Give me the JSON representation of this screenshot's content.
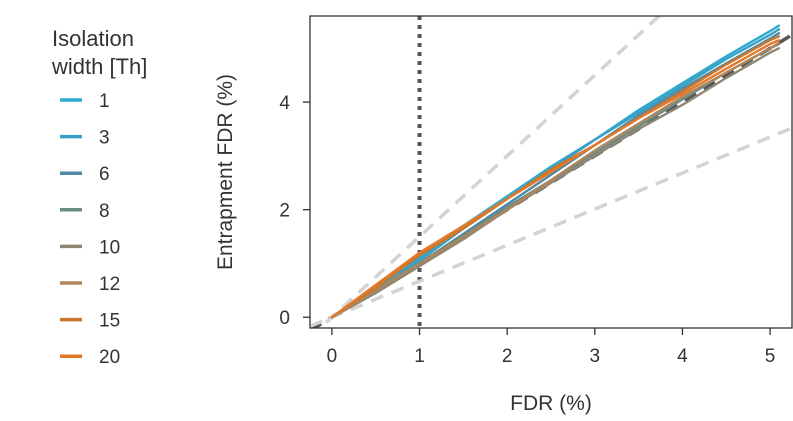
{
  "chart_data": {
    "type": "line",
    "xlabel": "FDR (%)",
    "ylabel": "Entrapment FDR (%)",
    "xlim": [
      -0.25,
      5.25
    ],
    "ylim": [
      -0.2,
      5.6
    ],
    "xticks": [
      "0",
      "1",
      "2",
      "3",
      "4",
      "5"
    ],
    "yticks": [
      "0",
      "2",
      "4"
    ],
    "legend": {
      "title_line1": "Isolation",
      "title_line2": "width [Th]",
      "placement": "left"
    },
    "reference_lines": [
      {
        "kind": "vertical",
        "x": 1,
        "style": "dotted",
        "color": "#555555"
      },
      {
        "kind": "diagonal",
        "slope": 1,
        "style": "dashed",
        "color": "#555555"
      },
      {
        "kind": "diagonal",
        "slope": 1.5,
        "style": "dashed",
        "color": "#d3d3d3"
      },
      {
        "kind": "diagonal",
        "slope": 0.67,
        "style": "dashed",
        "color": "#d3d3d3"
      }
    ],
    "x": [
      0,
      0.5,
      1,
      1.5,
      2,
      2.5,
      3,
      3.5,
      4,
      4.5,
      5,
      5.1
    ],
    "series": [
      {
        "name": "1",
        "color": "#2eaad1",
        "values": [
          0,
          0.55,
          1.1,
          1.7,
          2.25,
          2.8,
          3.3,
          3.85,
          4.35,
          4.85,
          5.32,
          5.42
        ]
      },
      {
        "name": "3",
        "color": "#3a9fc4",
        "values": [
          0,
          0.5,
          1.05,
          1.65,
          2.2,
          2.75,
          3.3,
          3.8,
          4.3,
          4.8,
          5.25,
          5.35
        ]
      },
      {
        "name": "6",
        "color": "#4e8aa3",
        "values": [
          0,
          0.5,
          1.0,
          1.55,
          2.1,
          2.65,
          3.2,
          3.75,
          4.25,
          4.72,
          5.18,
          5.28
        ]
      },
      {
        "name": "8",
        "color": "#6a8c86",
        "values": [
          0,
          0.45,
          0.95,
          1.5,
          2.05,
          2.55,
          3.05,
          3.55,
          4.05,
          4.55,
          5.0,
          5.08
        ]
      },
      {
        "name": "10",
        "color": "#8f8674",
        "values": [
          0,
          0.45,
          0.95,
          1.45,
          2.0,
          2.5,
          3.0,
          3.5,
          3.95,
          4.45,
          4.92,
          5.0
        ]
      },
      {
        "name": "12",
        "color": "#b0855a",
        "values": [
          0,
          0.5,
          1.0,
          1.5,
          2.0,
          2.55,
          3.1,
          3.6,
          4.1,
          4.55,
          5.0,
          5.1
        ]
      },
      {
        "name": "15",
        "color": "#c9762e",
        "values": [
          0,
          0.55,
          1.15,
          1.65,
          2.2,
          2.75,
          3.2,
          3.7,
          4.2,
          4.7,
          5.15,
          5.22
        ]
      },
      {
        "name": "20",
        "color": "#e3782a",
        "values": [
          0,
          0.6,
          1.2,
          1.7,
          2.2,
          2.7,
          3.2,
          3.7,
          4.15,
          4.62,
          5.08,
          5.15
        ]
      }
    ]
  }
}
